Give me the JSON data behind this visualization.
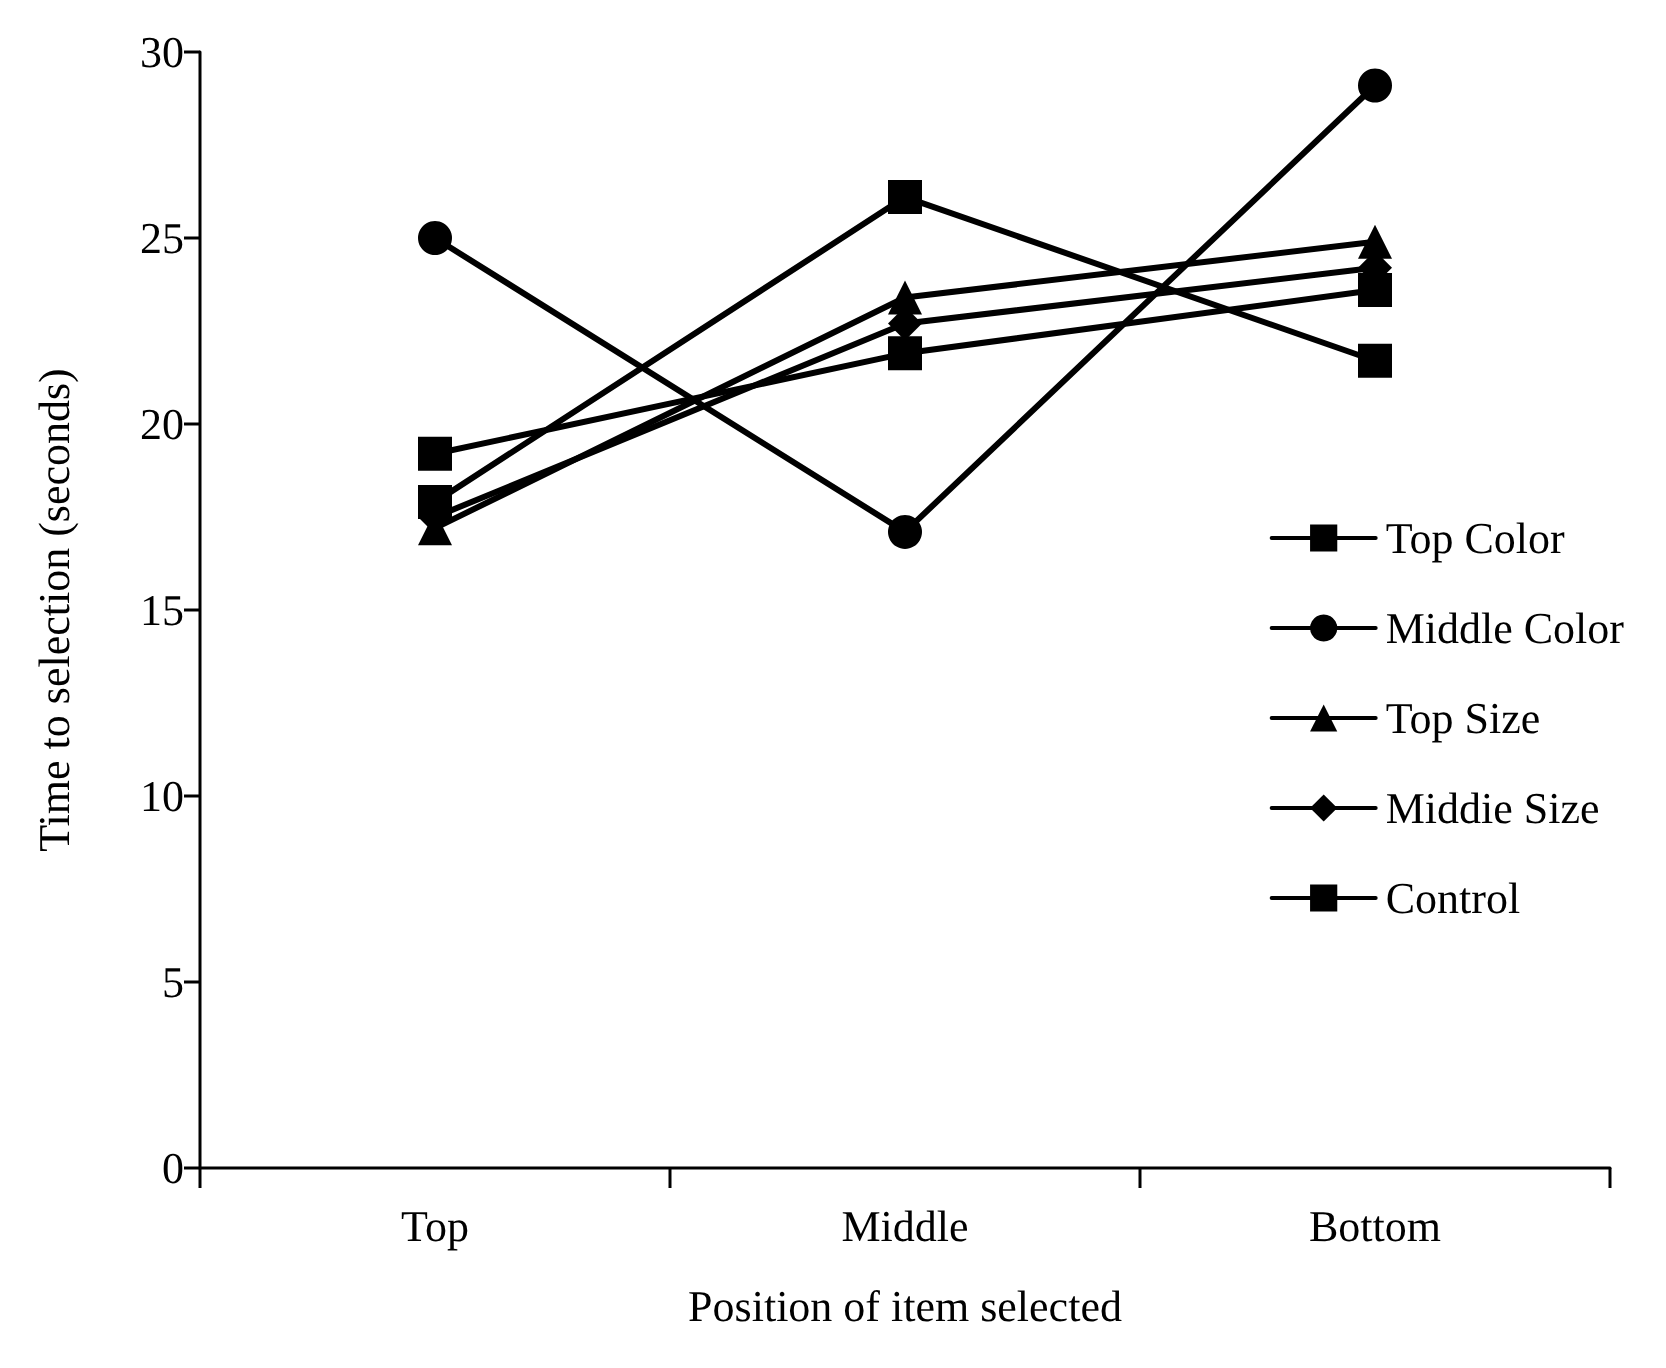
{
  "chart_data": {
    "type": "line",
    "xlabel": "Position of item selected",
    "ylabel": "Time to selection (seconds)",
    "categories": [
      "Top",
      "Middle",
      "Bottom"
    ],
    "series": [
      {
        "name": "Top Color",
        "color": "#000000",
        "marker": "square",
        "values": [
          17.9,
          26.1,
          21.7
        ]
      },
      {
        "name": "Middle Color",
        "color": "#000000",
        "marker": "circle",
        "values": [
          25.0,
          17.1,
          29.1
        ]
      },
      {
        "name": "Top Size",
        "color": "#000000",
        "marker": "triangle",
        "values": [
          17.2,
          23.4,
          24.9
        ]
      },
      {
        "name": "Middie Size",
        "color": "#000000",
        "marker": "diamond",
        "values": [
          17.5,
          22.7,
          24.2
        ]
      },
      {
        "name": "Control",
        "color": "#000000",
        "marker": "square",
        "values": [
          19.2,
          21.9,
          23.6
        ]
      }
    ],
    "ylim": [
      0,
      30
    ],
    "yticks": [
      0,
      5,
      10,
      15,
      20,
      25,
      30
    ],
    "grid": false,
    "legend": "right",
    "line_style": "solid"
  }
}
